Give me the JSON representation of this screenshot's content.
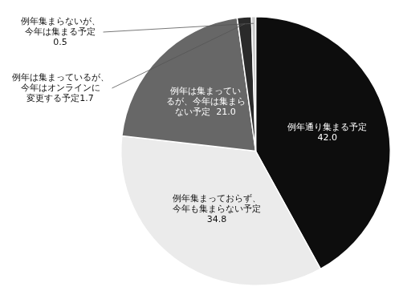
{
  "chart_data": {
    "type": "pie",
    "categories": [
      "例年通り集まる予定\n42.0",
      "例年集まっておらず、\n今年も集まらない予定\n34.8",
      "例年は集まってい\nるが、今年は集まら\nない予定  21.0",
      "例年は集まっているが、\n今年はオンラインに\n変更する予定1.7",
      "例年集まらないが、\n今年は集まる予定\n0.5"
    ],
    "values": [
      42.0,
      34.8,
      21.0,
      1.7,
      0.5
    ],
    "colors": [
      "#0d0d0d",
      "#ebebeb",
      "#676767",
      "#2a2a2a",
      "#c8c8c8"
    ]
  }
}
